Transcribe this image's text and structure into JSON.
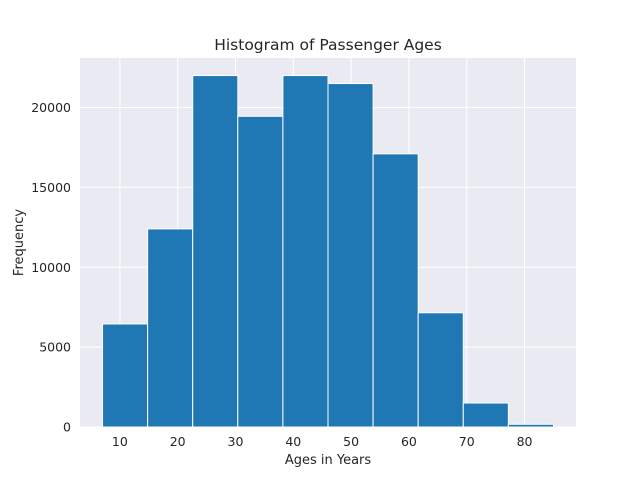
{
  "chart_data": {
    "type": "bar",
    "title": "Histogram of Passenger Ages",
    "xlabel": "Ages in Years",
    "ylabel": "Frequency",
    "bins": [
      {
        "start": 7,
        "end": 14.8,
        "value": 6450
      },
      {
        "start": 14.8,
        "end": 22.6,
        "value": 12400
      },
      {
        "start": 22.6,
        "end": 30.4,
        "value": 22000
      },
      {
        "start": 30.4,
        "end": 38.2,
        "value": 19450
      },
      {
        "start": 38.2,
        "end": 46.0,
        "value": 22000
      },
      {
        "start": 46.0,
        "end": 53.8,
        "value": 21500
      },
      {
        "start": 53.8,
        "end": 61.6,
        "value": 17100
      },
      {
        "start": 61.6,
        "end": 69.4,
        "value": 7150
      },
      {
        "start": 69.4,
        "end": 77.2,
        "value": 1500
      },
      {
        "start": 77.2,
        "end": 85.0,
        "value": 170
      }
    ],
    "xlim": [
      3.1,
      88.9
    ],
    "ylim": [
      0,
      23100
    ],
    "xticks": [
      10,
      20,
      30,
      40,
      50,
      60,
      70,
      80
    ],
    "yticks": [
      0,
      5000,
      10000,
      15000,
      20000
    ],
    "grid": true,
    "bar_color": "#1f77b4",
    "background_color": "#eaeaf2",
    "grid_color": "#ffffff"
  }
}
